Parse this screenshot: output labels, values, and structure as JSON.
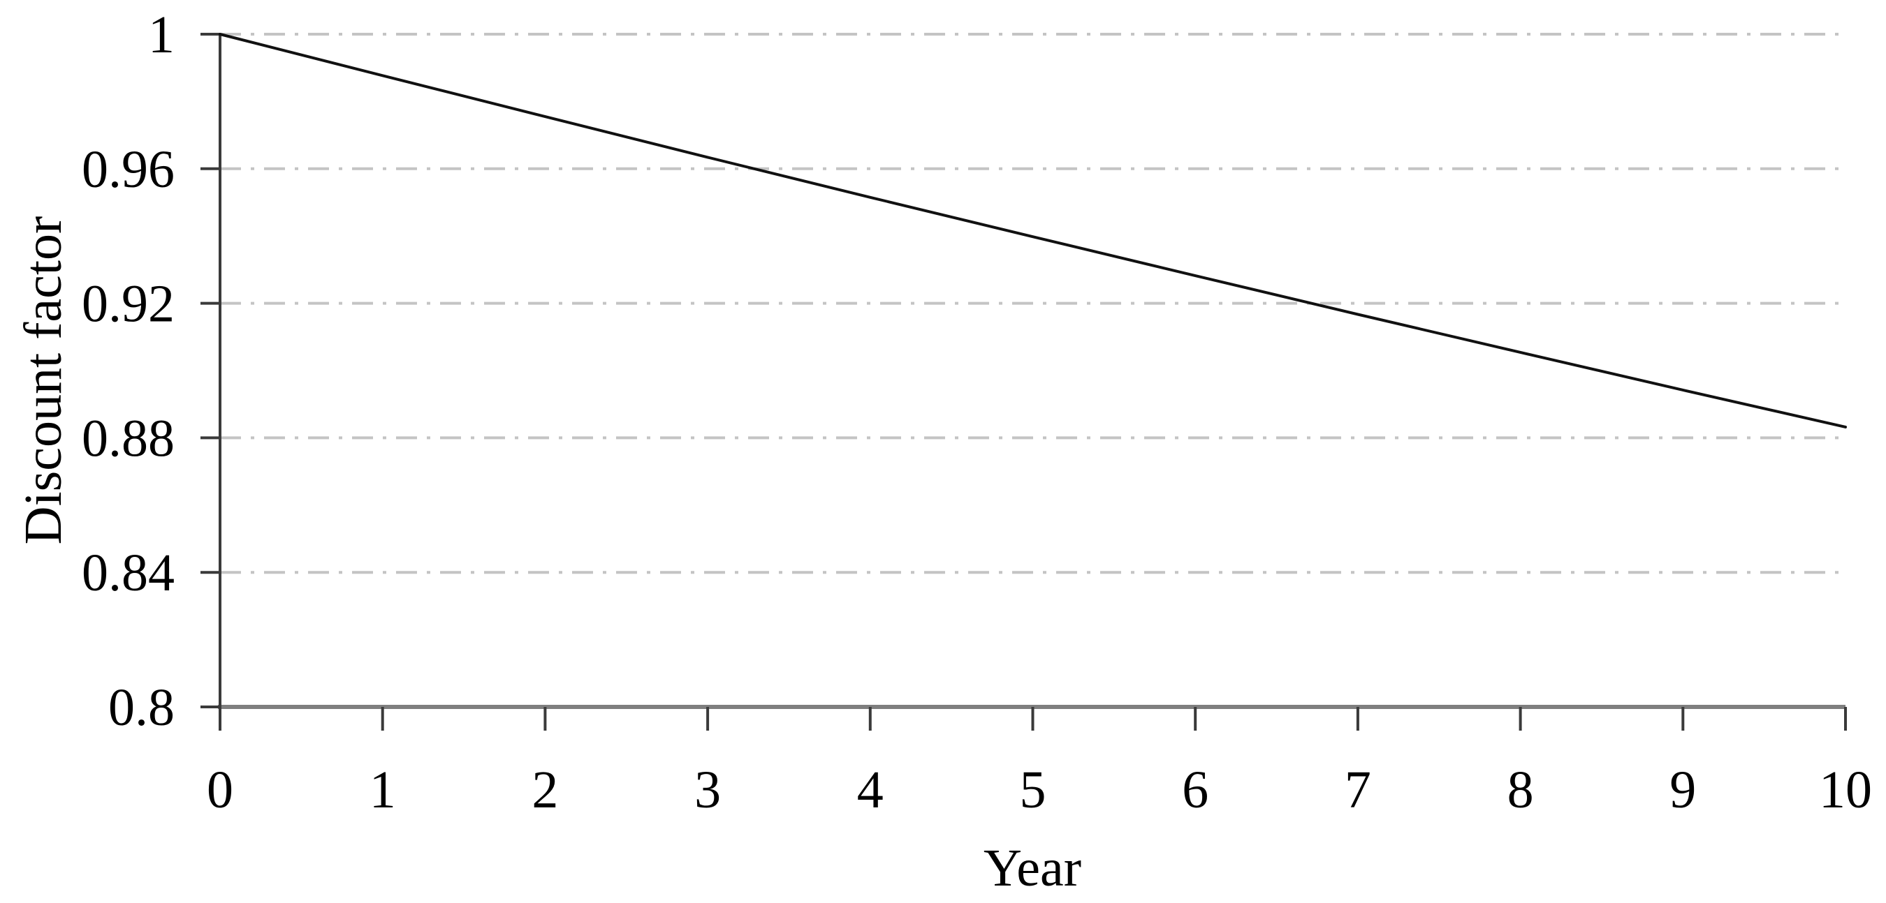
{
  "figure": {
    "background": "#ffffff"
  },
  "chart_data": {
    "type": "line",
    "title": "",
    "xlabel": "Year",
    "ylabel": "Discount factor",
    "x": [
      0,
      1,
      2,
      3,
      4,
      5,
      6,
      7,
      8,
      9,
      10
    ],
    "series": [
      {
        "name": "Discount factor",
        "values": [
          1.0,
          0.9877,
          0.9755,
          0.9634,
          0.9515,
          0.9398,
          0.9282,
          0.9167,
          0.9054,
          0.8942,
          0.8832
        ]
      }
    ],
    "xlim": [
      0,
      10
    ],
    "ylim": [
      0.8,
      1.0
    ],
    "x_ticks": [
      0,
      1,
      2,
      3,
      4,
      5,
      6,
      7,
      8,
      9,
      10
    ],
    "x_tick_labels": [
      "0",
      "1",
      "2",
      "3",
      "4",
      "5",
      "6",
      "7",
      "8",
      "9",
      "10"
    ],
    "y_ticks": [
      0.8,
      0.84,
      0.88,
      0.92,
      0.96,
      1.0
    ],
    "y_tick_labels": [
      "0.8",
      "0.84",
      "0.88",
      "0.92",
      "0.96",
      "1"
    ],
    "grid": "horizontal dash-dot gridlines at each y tick above axis",
    "legend": "none",
    "line_color": "#111111",
    "grid_color": "#c4c4c4",
    "x_axis_color": "#7f7f7f",
    "y_axis_color": "#3a3a3a",
    "tick_color": "#3a3a3a",
    "text_color": "#000000"
  }
}
